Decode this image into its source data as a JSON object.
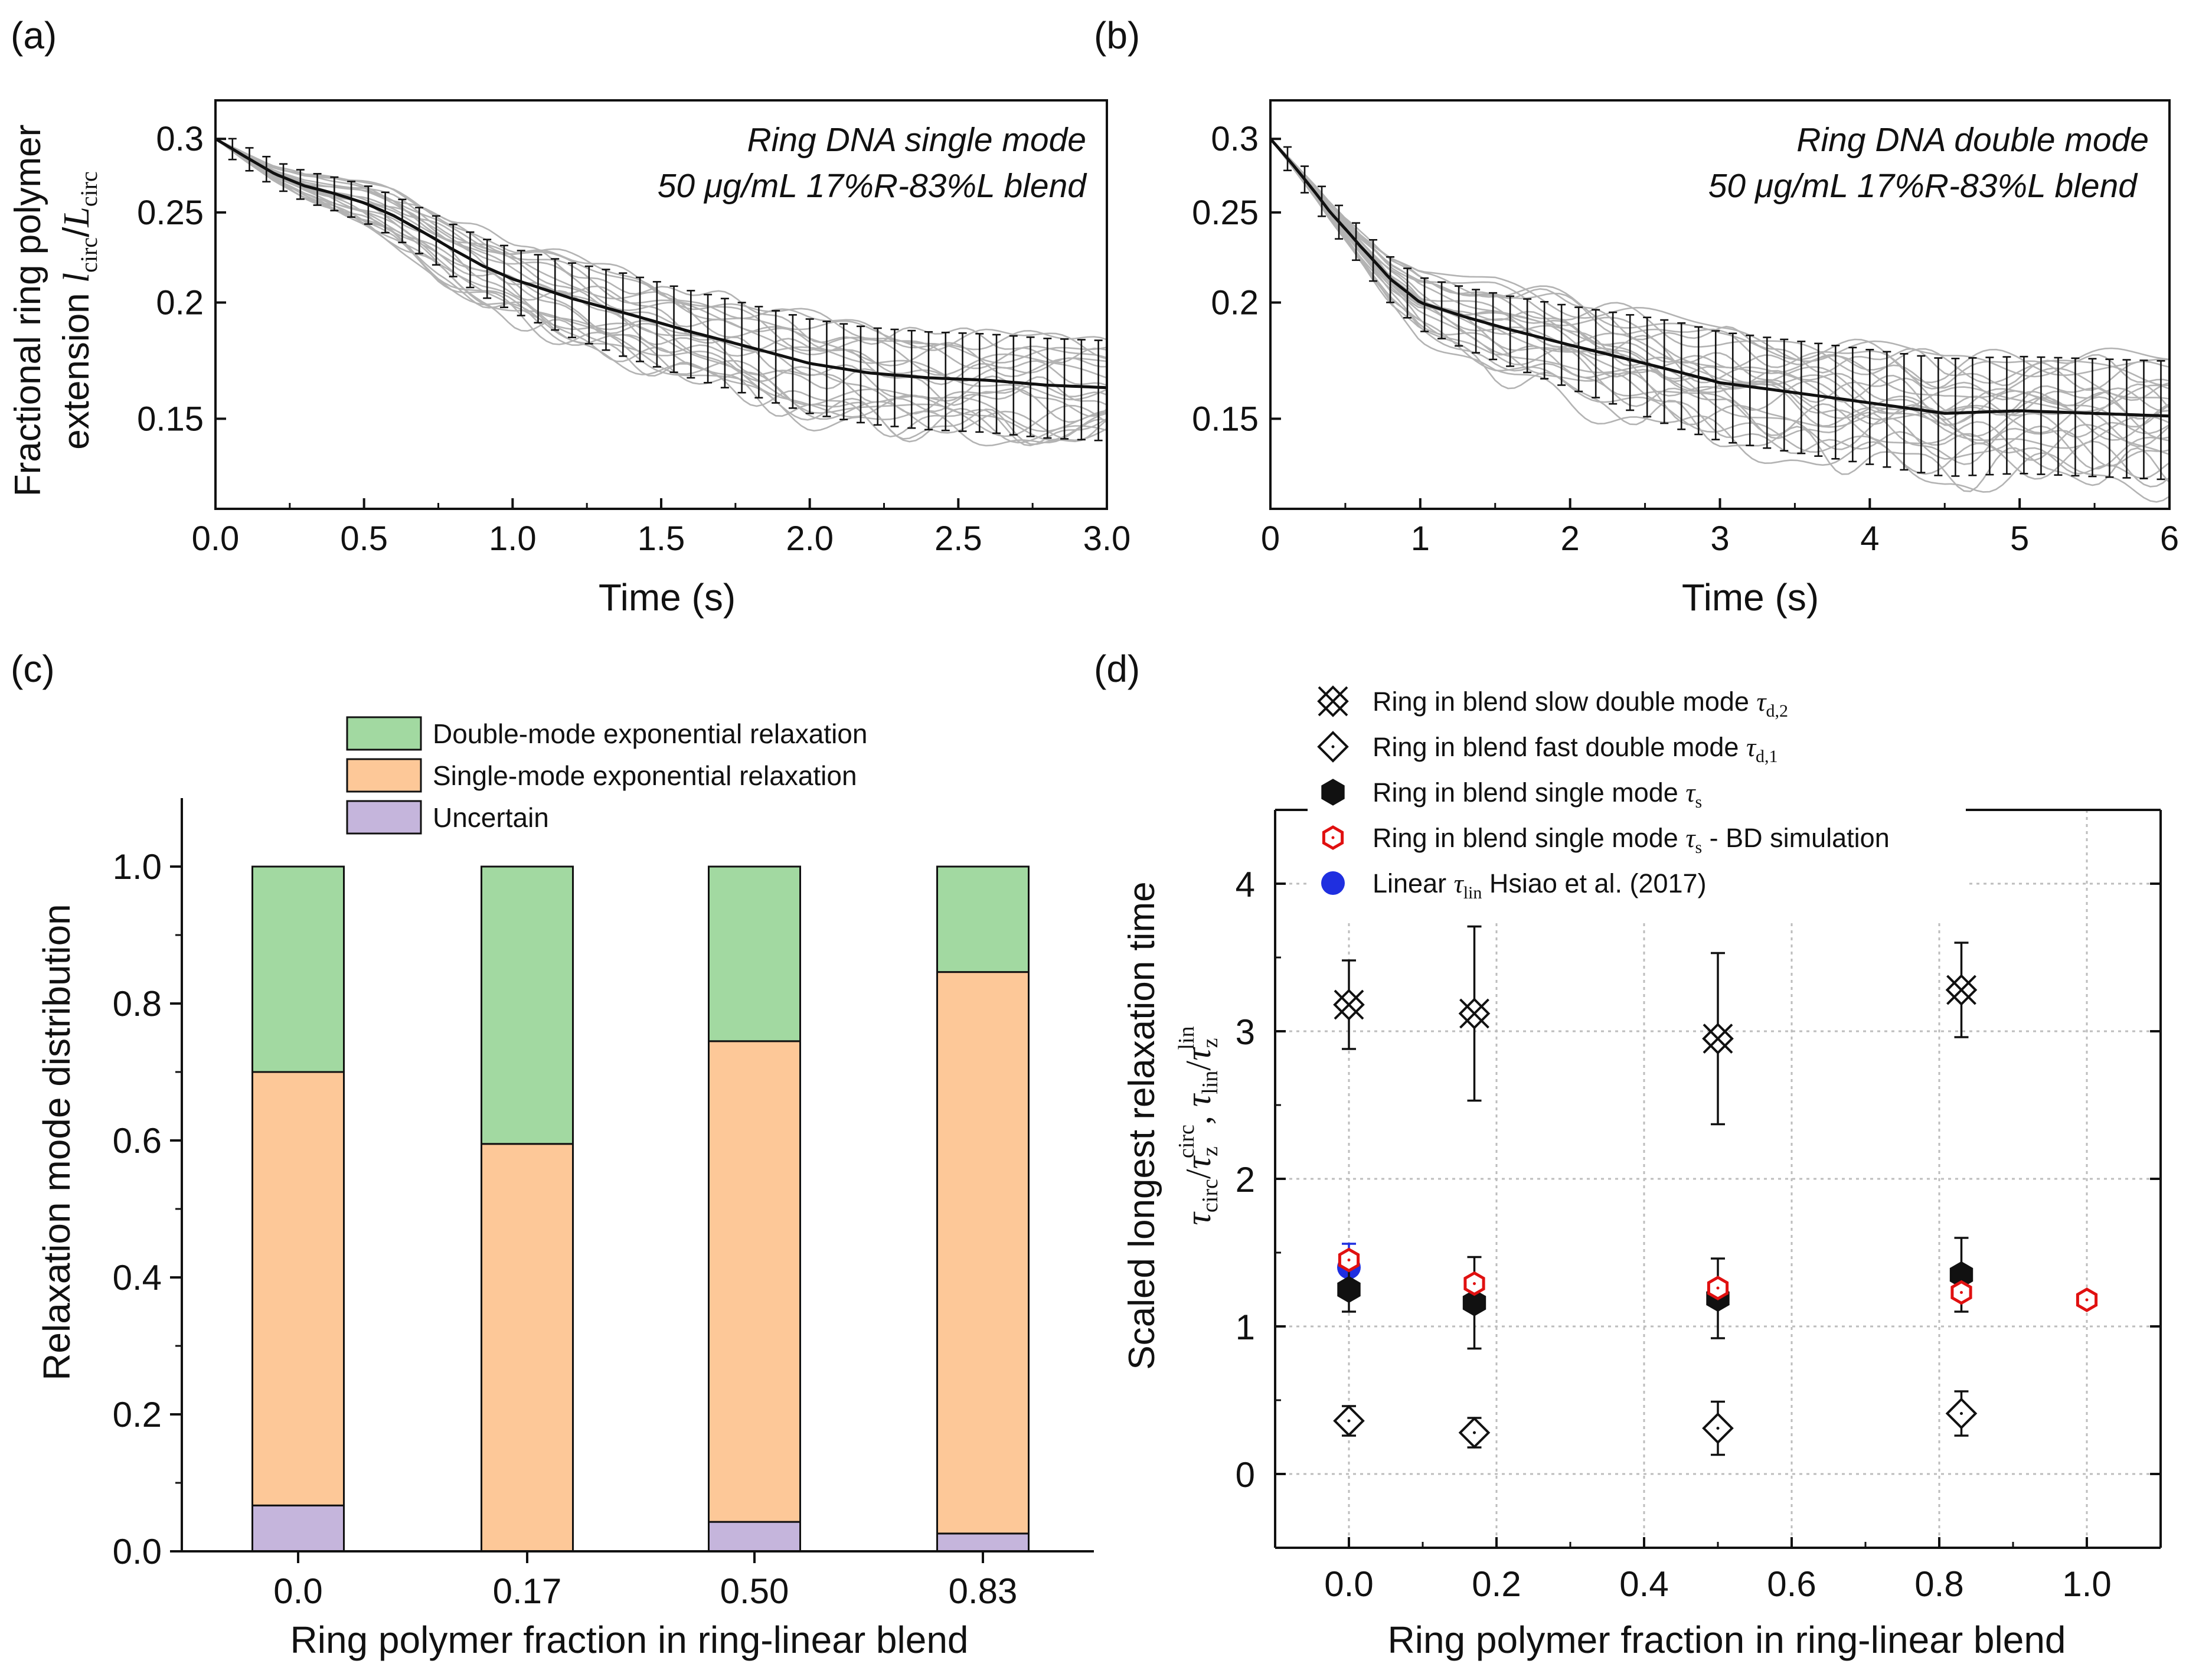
{
  "chart_data": [
    {
      "panel": "(a)",
      "type": "line",
      "annotation_lines": [
        "Ring DNA single mode",
        "50 μg/mL 17%R-83%L blend"
      ],
      "xlabel": "Time (s)",
      "ylabel_line1": "Fractional ring polymer",
      "ylabel_line2": "extension",
      "ylabel_math": {
        "l": "l",
        "l_sub": "circ",
        "slash": "/",
        "L": "L",
        "L_sub": "circ"
      },
      "y_scale": "log",
      "xlim": [
        0,
        3.0
      ],
      "ylim": [
        0.12,
        0.33
      ],
      "xticks": [
        "0.0",
        "0.5",
        "1.0",
        "1.5",
        "2.0",
        "2.5",
        "3.0"
      ],
      "xtick_values": [
        0,
        0.5,
        1.0,
        1.5,
        2.0,
        2.5,
        3.0
      ],
      "yticks": [
        "0.15",
        "0.2",
        "0.25",
        "0.3"
      ],
      "ytick_values": [
        0.15,
        0.2,
        0.25,
        0.3
      ],
      "mean_curve": {
        "x": [
          0,
          0.1,
          0.2,
          0.3,
          0.4,
          0.5,
          0.6,
          0.7,
          0.8,
          0.9,
          1.0,
          1.2,
          1.4,
          1.6,
          1.8,
          2.0,
          2.2,
          2.4,
          2.6,
          2.8,
          3.0
        ],
        "y": [
          0.3,
          0.287,
          0.275,
          0.267,
          0.262,
          0.256,
          0.248,
          0.238,
          0.228,
          0.219,
          0.212,
          0.202,
          0.194,
          0.186,
          0.179,
          0.172,
          0.168,
          0.166,
          0.165,
          0.163,
          0.162
        ]
      },
      "error_band_halfwidth": 0.02,
      "n_traces": 22,
      "series": [
        {
          "name": "mean extension with error bars"
        },
        {
          "name": "individual molecule traces"
        }
      ]
    },
    {
      "panel": "(b)",
      "type": "line",
      "annotation_lines": [
        "Ring DNA double mode",
        "50 μg/mL 17%R-83%L blend"
      ],
      "xlabel": "Time (s)",
      "y_scale": "log",
      "xlim": [
        0,
        6
      ],
      "ylim": [
        0.12,
        0.33
      ],
      "xticks": [
        "0",
        "1",
        "2",
        "3",
        "4",
        "5",
        "6"
      ],
      "xtick_values": [
        0,
        1,
        2,
        3,
        4,
        5,
        6
      ],
      "yticks": [
        "0.15",
        "0.2",
        "0.25",
        "0.3"
      ],
      "ytick_values": [
        0.15,
        0.2,
        0.25,
        0.3
      ],
      "mean_curve": {
        "x": [
          0,
          0.2,
          0.4,
          0.6,
          0.8,
          1.0,
          1.3,
          1.6,
          2.0,
          2.5,
          3.0,
          3.5,
          4.0,
          4.5,
          5.0,
          5.5,
          6.0
        ],
        "y": [
          0.3,
          0.275,
          0.25,
          0.23,
          0.212,
          0.2,
          0.193,
          0.187,
          0.18,
          0.172,
          0.164,
          0.16,
          0.156,
          0.152,
          0.153,
          0.152,
          0.151
        ]
      },
      "error_band_halfwidth": 0.022,
      "n_traces": 24,
      "series": [
        {
          "name": "mean extension with error bars"
        },
        {
          "name": "individual molecule traces"
        }
      ]
    },
    {
      "panel": "(c)",
      "type": "bar",
      "stacked": true,
      "xlabel": "Ring polymer fraction in ring-linear blend",
      "ylabel": "Relaxation mode distribution",
      "categories": [
        "0.0",
        "0.17",
        "0.50",
        "0.83"
      ],
      "ylim": [
        0,
        1.1
      ],
      "yticks": [
        "0.0",
        "0.2",
        "0.4",
        "0.6",
        "0.8",
        "1.0"
      ],
      "ytick_values": [
        0,
        0.2,
        0.4,
        0.6,
        0.8,
        1.0
      ],
      "series": [
        {
          "name": "Uncertain",
          "color": "#c5b5dc",
          "values": [
            0.067,
            0.0,
            0.043,
            0.026
          ]
        },
        {
          "name": "Single-mode exponential relaxation",
          "color": "#fdc898",
          "values": [
            0.633,
            0.595,
            0.702,
            0.82
          ]
        },
        {
          "name": "Double-mode exponential relaxation",
          "color": "#a2d9a1",
          "values": [
            0.3,
            0.405,
            0.255,
            0.154
          ]
        }
      ],
      "legend": [
        {
          "label": "Double-mode exponential relaxation",
          "color": "#a2d9a1"
        },
        {
          "label": "Single-mode exponential relaxation",
          "color": "#fdc898"
        },
        {
          "label": "Uncertain",
          "color": "#c5b5dc"
        }
      ],
      "legend_position": "top"
    },
    {
      "panel": "(d)",
      "type": "scatter",
      "xlabel": "Ring polymer fraction in ring-linear blend",
      "ylabel": "Scaled longest relaxation time",
      "ylabel_math": {
        "t1": "τ",
        "t1_sub": "circ",
        "z1": "τ",
        "z1_sub": "z",
        "z1_sup": "circ",
        "sep": ",",
        "t2": "τ",
        "t2_sub": "lin",
        "z2": "τ",
        "z2_sub": "z",
        "z2_sup": "lin",
        "slash": "/"
      },
      "xlim": [
        -0.1,
        1.1
      ],
      "ylim": [
        -0.5,
        4.5
      ],
      "xticks": [
        "0.0",
        "0.2",
        "0.4",
        "0.6",
        "0.8",
        "1.0"
      ],
      "xtick_values": [
        0,
        0.2,
        0.4,
        0.6,
        0.8,
        1.0
      ],
      "yticks": [
        "0",
        "1",
        "2",
        "3",
        "4"
      ],
      "ytick_values": [
        0,
        1,
        2,
        3,
        4
      ],
      "legend": [
        {
          "marker": "x-diamond",
          "text": "Ring in blend slow double mode ",
          "sym": "τ",
          "sub": "d,2"
        },
        {
          "marker": "diamond",
          "text": "Ring in blend fast double mode ",
          "sym": "τ",
          "sub": "d,1"
        },
        {
          "marker": "hexagon-filled",
          "text": "Ring in blend single mode ",
          "sym": "τ",
          "sub": "s"
        },
        {
          "marker": "hexagon-red",
          "text": "Ring in blend single mode ",
          "sym": "τ",
          "sub": "s",
          "after": " - BD simulation"
        },
        {
          "marker": "circle-blue",
          "text": "Linear ",
          "sym": "τ",
          "sub": "lin",
          "after": " Hsiao et al. (2017)"
        }
      ],
      "series": [
        {
          "name": "slow double mode τd,2",
          "points": [
            {
              "x": 0.0,
              "y": 3.18,
              "err": 0.3
            },
            {
              "x": 0.17,
              "y": 3.12,
              "err": 0.59
            },
            {
              "x": 0.5,
              "y": 2.95,
              "err": 0.58
            },
            {
              "x": 0.83,
              "y": 3.28,
              "err": 0.32
            }
          ]
        },
        {
          "name": "fast double mode τd,1",
          "points": [
            {
              "x": 0.0,
              "y": 0.36,
              "err": 0.1
            },
            {
              "x": 0.17,
              "y": 0.28,
              "err": 0.1
            },
            {
              "x": 0.5,
              "y": 0.31,
              "err": 0.18
            },
            {
              "x": 0.83,
              "y": 0.41,
              "err": 0.15
            }
          ]
        },
        {
          "name": "single mode τs",
          "points": [
            {
              "x": 0.0,
              "y": 1.25,
              "err": 0.15
            },
            {
              "x": 0.17,
              "y": 1.16,
              "err": 0.31
            },
            {
              "x": 0.5,
              "y": 1.19,
              "err": 0.27
            },
            {
              "x": 0.83,
              "y": 1.35,
              "err": 0.25
            }
          ]
        },
        {
          "name": "single mode τs - BD simulation",
          "points": [
            {
              "x": 0.0,
              "y": 1.45
            },
            {
              "x": 0.17,
              "y": 1.29
            },
            {
              "x": 0.5,
              "y": 1.26
            },
            {
              "x": 0.83,
              "y": 1.23
            },
            {
              "x": 1.0,
              "y": 1.18
            }
          ]
        },
        {
          "name": "Linear τlin Hsiao et al. (2017)",
          "points": [
            {
              "x": 0.0,
              "y": 1.4,
              "err": 0.16
            }
          ]
        }
      ]
    }
  ]
}
